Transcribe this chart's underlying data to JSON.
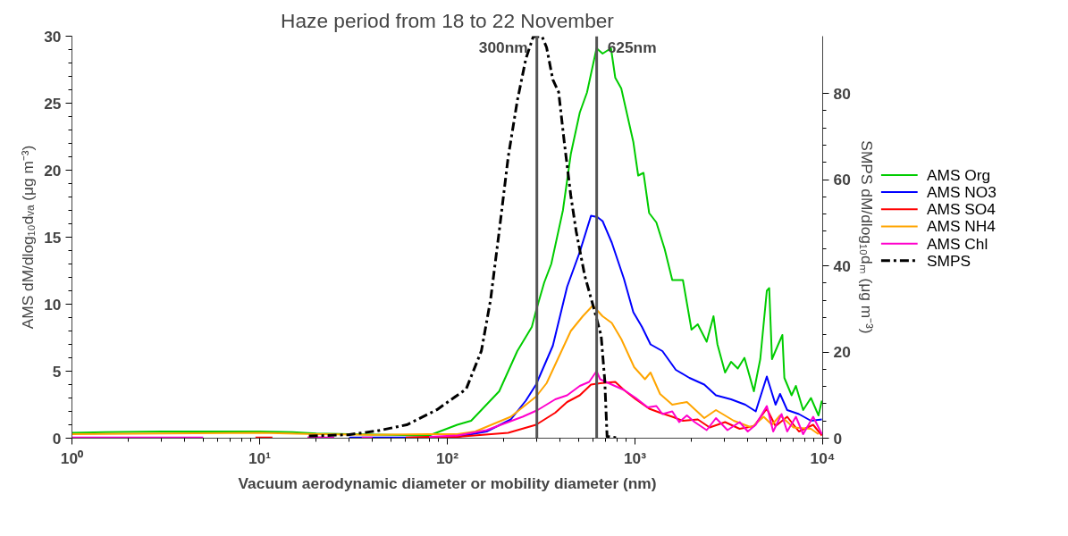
{
  "chart_data": {
    "type": "line",
    "title": "Haze period from 18 to 22 November",
    "xlabel": "Vacuum aerodynamic diameter or mobility diameter (nm)",
    "ylabel": "AMS dM/dlog₁₀dᵥₐ (μg m⁻³)",
    "y2label": "SMPS dM/dlog₁₀dₘ (μg m⁻³)",
    "log": "x",
    "grid": false,
    "legend": "right",
    "marker": "none",
    "xlim": [
      1,
      10000
    ],
    "xticks": [
      {
        "value": 1,
        "label": "10⁰"
      },
      {
        "value": 10,
        "label": "10¹"
      },
      {
        "value": 100,
        "label": "10²"
      },
      {
        "value": 1000,
        "label": "10³"
      },
      {
        "value": 10000,
        "label": "10⁴"
      }
    ],
    "ylim": [
      0,
      30
    ],
    "yticks": [
      0,
      5,
      10,
      15,
      20,
      25,
      30
    ],
    "y2lim": [
      0,
      93.3
    ],
    "y2ticks": [
      0,
      20,
      40,
      60,
      80
    ],
    "ref_lines": [
      {
        "axis": "x",
        "value": 300,
        "label": "300nm",
        "color": "#555555"
      },
      {
        "axis": "x",
        "value": 625,
        "label": "625nm",
        "color": "#555555"
      }
    ],
    "series": [
      {
        "name": "AMS Org",
        "color": "#00cc00",
        "x": [
          1,
          1.5,
          3,
          5,
          10,
          15,
          20,
          30,
          50,
          80,
          113,
          134,
          189,
          236,
          282,
          297,
          328,
          358,
          413,
          455,
          508,
          555,
          624,
          672,
          745,
          785,
          845,
          980,
          1040,
          1110,
          1190,
          1300,
          1440,
          1580,
          1800,
          2000,
          2160,
          2410,
          2620,
          2750,
          3020,
          3250,
          3530,
          3830,
          4300,
          4650,
          5040,
          5190,
          5370,
          5800,
          6100,
          6250,
          6830,
          7200,
          7870,
          8660,
          9500,
          9900
        ],
        "values": [
          0.4,
          0.45,
          0.5,
          0.5,
          0.5,
          0.45,
          0.35,
          0.3,
          0.25,
          0.2,
          1.0,
          1.3,
          3.5,
          6.5,
          8.3,
          9.5,
          11.6,
          13.0,
          17.0,
          21.2,
          24.3,
          25.8,
          29.1,
          28.7,
          29.1,
          26.9,
          26.1,
          22.1,
          19.6,
          19.8,
          16.8,
          16.1,
          14.1,
          11.8,
          11.8,
          8.1,
          8.5,
          7.2,
          9.1,
          7.0,
          4.9,
          5.7,
          5.2,
          6.0,
          3.5,
          5.9,
          11.0,
          11.2,
          5.9,
          7.0,
          7.7,
          4.5,
          3.2,
          3.9,
          2.1,
          3.0,
          1.7,
          2.8
        ]
      },
      {
        "name": "AMS NO3",
        "color": "#0000ff",
        "x": [
          30,
          60,
          95,
          113,
          162,
          218,
          262,
          297,
          365,
          435,
          508,
          583,
          630,
          672,
          752,
          873,
          980,
          1090,
          1210,
          1400,
          1650,
          1950,
          2340,
          2700,
          3250,
          3870,
          4400,
          5040,
          5610,
          5930,
          6470,
          7470,
          8660,
          9900
        ],
        "values": [
          0.05,
          0.05,
          0.05,
          0.1,
          0.5,
          1.4,
          2.8,
          4.0,
          6.9,
          11.3,
          13.9,
          16.6,
          16.5,
          16.2,
          14.6,
          11.9,
          9.4,
          8.3,
          7.0,
          6.5,
          5.1,
          4.5,
          4.0,
          3.2,
          2.9,
          2.5,
          2.0,
          4.6,
          2.5,
          3.3,
          2.1,
          1.8,
          1.3,
          1.4
        ]
      },
      {
        "name": "AMS SO4",
        "color": "#ff0000",
        "x": [
          9.5,
          11.7,
          13,
          18,
          22,
          25,
          60,
          80,
          113,
          211,
          297,
          376,
          435,
          508,
          583,
          652,
          785,
          873,
          1010,
          1190,
          1360,
          1580,
          1800,
          2160,
          2500,
          3020,
          3610,
          4300,
          5040,
          5610,
          6470,
          7470,
          8900,
          9900
        ],
        "values": [
          0.05,
          0.05,
          null,
          0.05,
          0.05,
          null,
          0.05,
          0.1,
          0.1,
          0.4,
          1.0,
          1.9,
          2.7,
          3.2,
          4.0,
          4.1,
          4.2,
          3.6,
          2.9,
          2.2,
          1.9,
          1.6,
          1.3,
          1.4,
          0.8,
          1.2,
          0.7,
          0.9,
          2.2,
          0.9,
          1.6,
          0.5,
          1.0,
          0.2
        ]
      },
      {
        "name": "AMS NH4",
        "color": "#ffa500",
        "x": [
          1,
          3,
          10,
          20,
          40,
          80,
          113,
          141,
          218,
          297,
          338,
          455,
          527,
          596,
          672,
          752,
          845,
          990,
          1130,
          1210,
          1360,
          1580,
          1890,
          2340,
          2700,
          3360,
          4180,
          4850,
          5370,
          5930,
          6990,
          8660,
          9500
        ],
        "values": [
          0.3,
          0.35,
          0.4,
          0.3,
          0.25,
          0.3,
          0.3,
          0.5,
          1.6,
          3.1,
          4.1,
          8.0,
          9.1,
          9.9,
          9.1,
          8.6,
          7.4,
          5.3,
          4.4,
          4.9,
          3.3,
          2.5,
          2.7,
          1.5,
          2.1,
          1.3,
          0.8,
          1.6,
          1.0,
          1.7,
          0.8,
          0.7,
          0.3
        ]
      },
      {
        "name": "AMS Chl",
        "color": "#ff00cc",
        "x": [
          1,
          5,
          6,
          18,
          25,
          27,
          35,
          40,
          45,
          80,
          113,
          162,
          211,
          252,
          303,
          376,
          435,
          508,
          570,
          624,
          652,
          752,
          873,
          1010,
          1170,
          1300,
          1400,
          1580,
          1720,
          1890,
          2080,
          2410,
          2700,
          3110,
          3610,
          3990,
          4400,
          5040,
          5450,
          6040,
          6470,
          7200,
          7870,
          8900,
          9900
        ],
        "values": [
          0.05,
          0.05,
          null,
          0.05,
          0.05,
          null,
          0.05,
          0.05,
          null,
          0.1,
          0.2,
          0.6,
          1.2,
          1.6,
          2.1,
          2.9,
          3.2,
          3.9,
          4.2,
          5.0,
          4.4,
          4.0,
          3.6,
          3.0,
          2.3,
          2.4,
          1.8,
          2.0,
          1.2,
          1.7,
          1.2,
          0.6,
          1.5,
          0.6,
          1.2,
          0.5,
          1.0,
          2.4,
          0.5,
          1.8,
          0.5,
          1.6,
          0.3,
          1.6,
          0.3
        ]
      },
      {
        "name": "SMPS",
        "color": "#000000",
        "axis": "y2",
        "line_style": "dashed",
        "x": [
          18.3,
          29.6,
          42.4,
          60.8,
          88,
          126,
          152,
          170,
          189,
          211,
          236,
          262,
          287,
          320,
          338,
          365,
          392,
          420,
          455,
          486,
          540,
          605,
          660,
          690,
          710,
          825
        ],
        "values": [
          0.5,
          0.8,
          1.7,
          3.1,
          6.6,
          11.4,
          20.3,
          32.1,
          48.0,
          65.2,
          78.3,
          88.0,
          93.2,
          93.2,
          90.7,
          83.2,
          80.3,
          68.7,
          56.3,
          48.0,
          37.7,
          30.0,
          23.8,
          13.5,
          0.4,
          0.0
        ]
      }
    ]
  }
}
